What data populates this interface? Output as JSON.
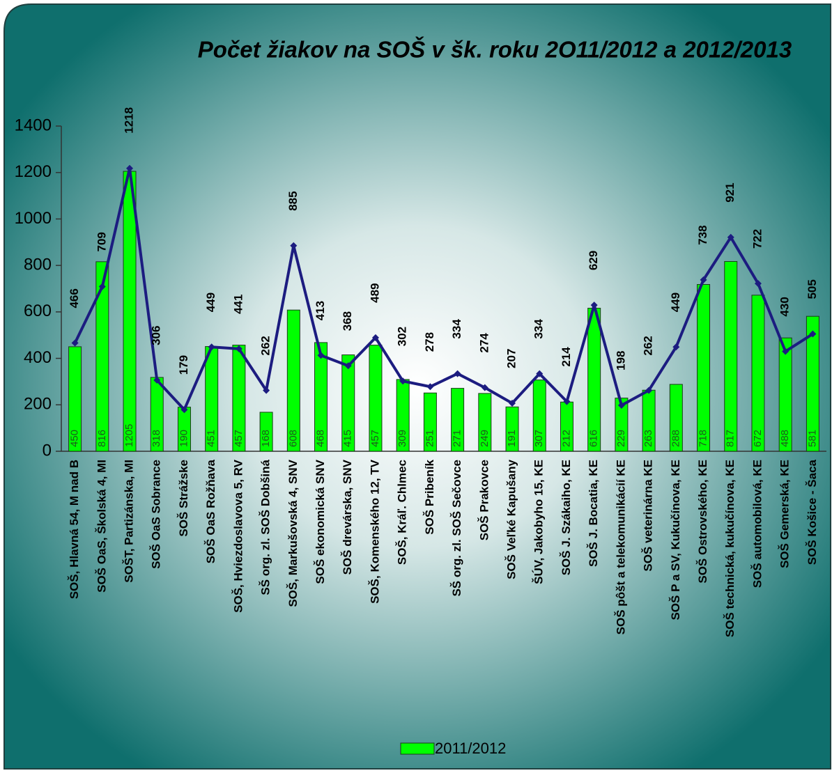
{
  "chart_data": {
    "type": "bar_line",
    "title": "Počet žiakov na SOŠ v šk. roku 2O11/2012 a 2012/2013",
    "categories": [
      "SOŠ, Hlavná 54, M nad B",
      "SOŠ OaS, Školská 4, MI",
      "SOŠT, Partizánska, MI",
      "SOŠ OaS Sobrance",
      "SOŠ Strážske",
      "SOŠ OaS Rožňava",
      "SOŠ, Hviezdoslavova 5, RV",
      "SŠ org. zl. SOŠ Dobšiná",
      "SOŠ, Markušovská 4, SNV",
      "SOŠ ekonomická  SNV",
      "SOŠ drevárska, SNV",
      "SOŠ, Komenského 12, TV",
      "SOŠ, Kráľ. Chlmec",
      "SOŠ Pribeník",
      "SŠ org. zl. SOŠ Sečovce",
      "SOŠ Prakovce",
      "SOŠ Veľké Kapušany",
      "ŠÚV, Jakobyho 15, KE",
      "SOŠ J. Szákaiho, KE",
      "SOŠ J. Bocatia, KE",
      "SOŠ pôšt a telekomunikácií  KE",
      "SOŠ veterinárna KE",
      "SOŠ P a SV, Kukučínova, KE",
      "SOŠ Ostrovského, KE",
      "SOŠ technická, kukučínova, KE",
      "SOŠ automobilová, KE",
      "SOŠ Gemerská, KE",
      "SOŠ Košice - Šaca"
    ],
    "series": [
      {
        "name": "2011/2012",
        "color": "#00ff00",
        "values": [
          450,
          816,
          1205,
          318,
          190,
          451,
          457,
          168,
          608,
          468,
          415,
          457,
          309,
          251,
          271,
          249,
          191,
          307,
          212,
          616,
          229,
          263,
          288,
          718,
          817,
          672,
          488,
          581
        ]
      },
      {
        "color": "#1c1c80",
        "values": [
          466,
          709,
          1218,
          306,
          179,
          449,
          441,
          262,
          885,
          413,
          368,
          489,
          302,
          278,
          334,
          274,
          207,
          334,
          214,
          629,
          198,
          262,
          449,
          738,
          921,
          722,
          430,
          505
        ]
      }
    ],
    "ylim": [
      0,
      1400
    ],
    "yticks": [
      0,
      200,
      400,
      600,
      800,
      1000,
      1200,
      1400
    ],
    "grid": false
  }
}
